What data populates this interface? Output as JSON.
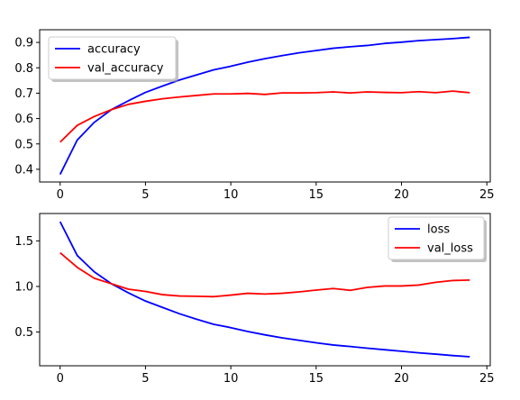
{
  "chart_data": [
    {
      "type": "line",
      "title": "",
      "xlabel": "",
      "ylabel": "",
      "grid": false,
      "legend": "upper left",
      "xlim": [
        -1.2,
        25.2
      ],
      "ylim": [
        0.35,
        0.95
      ],
      "xticks": [
        0,
        5,
        10,
        15,
        20,
        25
      ],
      "yticks": [
        0.4,
        0.5,
        0.6,
        0.7,
        0.8,
        0.9
      ],
      "x": [
        0,
        1,
        2,
        3,
        4,
        5,
        6,
        7,
        8,
        9,
        10,
        11,
        12,
        13,
        14,
        15,
        16,
        17,
        18,
        19,
        20,
        21,
        22,
        23,
        24
      ],
      "series": [
        {
          "name": "accuracy",
          "color": "#0000ff",
          "values": [
            0.38,
            0.515,
            0.585,
            0.635,
            0.67,
            0.703,
            0.728,
            0.752,
            0.772,
            0.792,
            0.806,
            0.822,
            0.836,
            0.848,
            0.859,
            0.868,
            0.877,
            0.883,
            0.888,
            0.896,
            0.901,
            0.907,
            0.911,
            0.915,
            0.92
          ]
        },
        {
          "name": "val_accuracy",
          "color": "#ff0000",
          "values": [
            0.507,
            0.573,
            0.608,
            0.635,
            0.656,
            0.668,
            0.678,
            0.685,
            0.691,
            0.697,
            0.697,
            0.699,
            0.695,
            0.701,
            0.701,
            0.702,
            0.705,
            0.701,
            0.705,
            0.703,
            0.702,
            0.706,
            0.702,
            0.708,
            0.702
          ]
        }
      ]
    },
    {
      "type": "line",
      "title": "",
      "xlabel": "",
      "ylabel": "",
      "grid": false,
      "legend": "upper right",
      "xlim": [
        -1.2,
        25.2
      ],
      "ylim": [
        0.13,
        1.8
      ],
      "xticks": [
        0,
        5,
        10,
        15,
        20,
        25
      ],
      "yticks": [
        0.5,
        1.0,
        1.5
      ],
      "ytick_labels": [
        "0.5",
        "1.0",
        "1.5"
      ],
      "x": [
        0,
        1,
        2,
        3,
        4,
        5,
        6,
        7,
        8,
        9,
        10,
        11,
        12,
        13,
        14,
        15,
        16,
        17,
        18,
        19,
        20,
        21,
        22,
        23,
        24
      ],
      "series": [
        {
          "name": "loss",
          "color": "#0000ff",
          "values": [
            1.71,
            1.34,
            1.16,
            1.03,
            0.93,
            0.84,
            0.77,
            0.7,
            0.64,
            0.585,
            0.548,
            0.505,
            0.469,
            0.436,
            0.409,
            0.382,
            0.358,
            0.341,
            0.323,
            0.306,
            0.289,
            0.272,
            0.258,
            0.242,
            0.229
          ]
        },
        {
          "name": "val_loss",
          "color": "#ff0000",
          "values": [
            1.37,
            1.21,
            1.09,
            1.03,
            0.97,
            0.945,
            0.91,
            0.895,
            0.892,
            0.888,
            0.905,
            0.925,
            0.917,
            0.925,
            0.94,
            0.96,
            0.977,
            0.958,
            0.99,
            1.005,
            1.005,
            1.015,
            1.045,
            1.065,
            1.07
          ]
        }
      ]
    }
  ]
}
